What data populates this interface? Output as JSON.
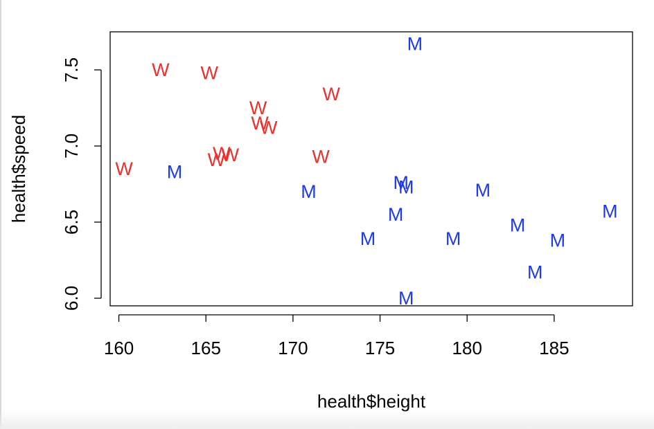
{
  "chart_data": {
    "type": "scatter",
    "title": "",
    "xlabel": "health$height",
    "ylabel": "health$speed",
    "xlim": [
      159.5,
      189.5
    ],
    "ylim": [
      5.95,
      7.75
    ],
    "x_ticks": [
      160,
      165,
      170,
      175,
      180,
      185
    ],
    "y_ticks": [
      6.0,
      6.5,
      7.0,
      7.5
    ],
    "x_tick_labels": [
      "160",
      "165",
      "170",
      "175",
      "180",
      "185"
    ],
    "y_tick_labels": [
      "6.0",
      "6.5",
      "7.0",
      "7.5"
    ],
    "grid": false,
    "legend": "none",
    "colors": {
      "W": "#e8322d",
      "M": "#1d3be8"
    },
    "series": [
      {
        "label": "W",
        "x": [
          160.3,
          162.4,
          165.2,
          165.6,
          165.9,
          166.4,
          168.0,
          168.1,
          168.6,
          171.6,
          172.2
        ],
        "y": [
          6.85,
          7.5,
          7.48,
          6.91,
          6.95,
          6.94,
          7.25,
          7.15,
          7.12,
          6.93,
          7.34
        ]
      },
      {
        "label": "M",
        "x": [
          163.2,
          170.9,
          174.3,
          175.9,
          176.2,
          176.5,
          176.5,
          177.0,
          179.2,
          180.9,
          182.9,
          183.9,
          185.2,
          188.2
        ],
        "y": [
          6.83,
          6.7,
          6.39,
          6.55,
          6.76,
          6.73,
          6.0,
          7.67,
          6.39,
          6.71,
          6.48,
          6.17,
          6.38,
          6.57
        ]
      }
    ]
  }
}
